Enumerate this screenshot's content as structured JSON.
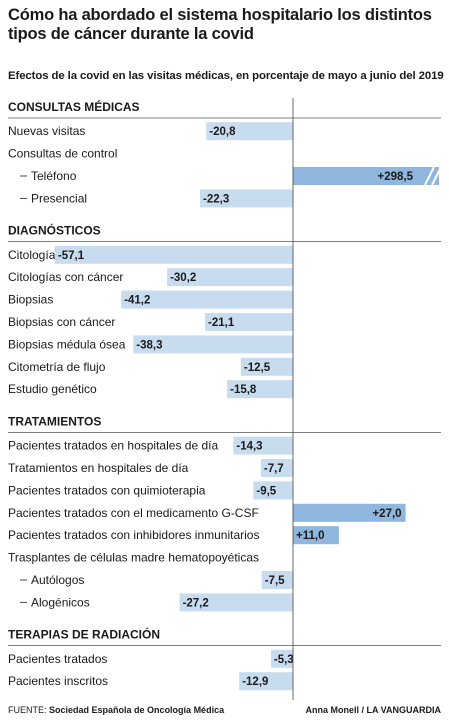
{
  "title": "Cómo ha abordado el sistema hospitalario los distintos tipos de cáncer durante la covid",
  "subtitle": "Efectos de la covid en las visitas médicas, en porcentaje de mayo a junio del 2019",
  "footer": {
    "source_label": "FUENTE:",
    "source": "Sociedad Española de Oncología Médica",
    "credit": "Anna Monell / LA VANGUARDIA"
  },
  "colors": {
    "bar": "#c8dcef",
    "bar_strong": "#8fb6dc",
    "rule": "#555555",
    "zero_line": "#444444"
  },
  "chart_data": {
    "type": "bar",
    "orientation": "horizontal",
    "unit": "%",
    "xlim": [
      -60,
      300
    ],
    "axis_break_on": "Teléfono",
    "rows": [
      {
        "kind": "section",
        "label": "CONSULTAS MÉDICAS"
      },
      {
        "kind": "bar",
        "label": "Nuevas visitas",
        "value": -20.8,
        "display": "-20,8"
      },
      {
        "kind": "group",
        "label": "Consultas de control"
      },
      {
        "kind": "bar",
        "label": "Teléfono",
        "value": 298.5,
        "display": "+298,5",
        "indent": true
      },
      {
        "kind": "bar",
        "label": "Presencial",
        "value": -22.3,
        "display": "-22,3",
        "indent": true
      },
      {
        "kind": "section",
        "label": "DIAGNÓSTICOS"
      },
      {
        "kind": "bar",
        "label": "Citologías",
        "value": -57.1,
        "display": "-57,1"
      },
      {
        "kind": "bar",
        "label": "Citologías con cáncer",
        "value": -30.2,
        "display": "-30,2"
      },
      {
        "kind": "bar",
        "label": "Biopsias",
        "value": -41.2,
        "display": "-41,2"
      },
      {
        "kind": "bar",
        "label": "Biopsias con cáncer",
        "value": -21.1,
        "display": "-21,1"
      },
      {
        "kind": "bar",
        "label": "Biopsias médula ósea",
        "value": -38.3,
        "display": "-38,3"
      },
      {
        "kind": "bar",
        "label": "Citometría de flujo",
        "value": -12.5,
        "display": "-12,5"
      },
      {
        "kind": "bar",
        "label": "Estudio genético",
        "value": -15.8,
        "display": "-15,8"
      },
      {
        "kind": "section",
        "label": "TRATAMIENTOS"
      },
      {
        "kind": "bar",
        "label": "Pacientes tratados en hospitales de día",
        "value": -14.3,
        "display": "-14,3"
      },
      {
        "kind": "bar",
        "label": "Tratamientos en hospitales de día",
        "value": -7.7,
        "display": "-7,7"
      },
      {
        "kind": "bar",
        "label": "Pacientes tratados con quimioterapia",
        "value": -9.5,
        "display": "-9,5"
      },
      {
        "kind": "bar",
        "label": "Pacientes tratados con el medicamento G-CSF",
        "value": 27.0,
        "display": "+27,0"
      },
      {
        "kind": "bar",
        "label": "Pacientes tratados con inhibidores inmunitarios",
        "value": 11.0,
        "display": "+11,0"
      },
      {
        "kind": "group",
        "label": "Trasplantes de células madre hematopoyéticas"
      },
      {
        "kind": "bar",
        "label": "Autólogos",
        "value": -7.5,
        "display": "-7,5",
        "indent": true
      },
      {
        "kind": "bar",
        "label": "Alogénicos",
        "value": -27.2,
        "display": "-27,2",
        "indent": true
      },
      {
        "kind": "section",
        "label": "TERAPIAS DE RADIACIÓN"
      },
      {
        "kind": "bar",
        "label": "Pacientes tratados",
        "value": -5.3,
        "display": "-5,3"
      },
      {
        "kind": "bar",
        "label": "Pacientes inscritos",
        "value": -12.9,
        "display": "-12,9"
      }
    ]
  }
}
